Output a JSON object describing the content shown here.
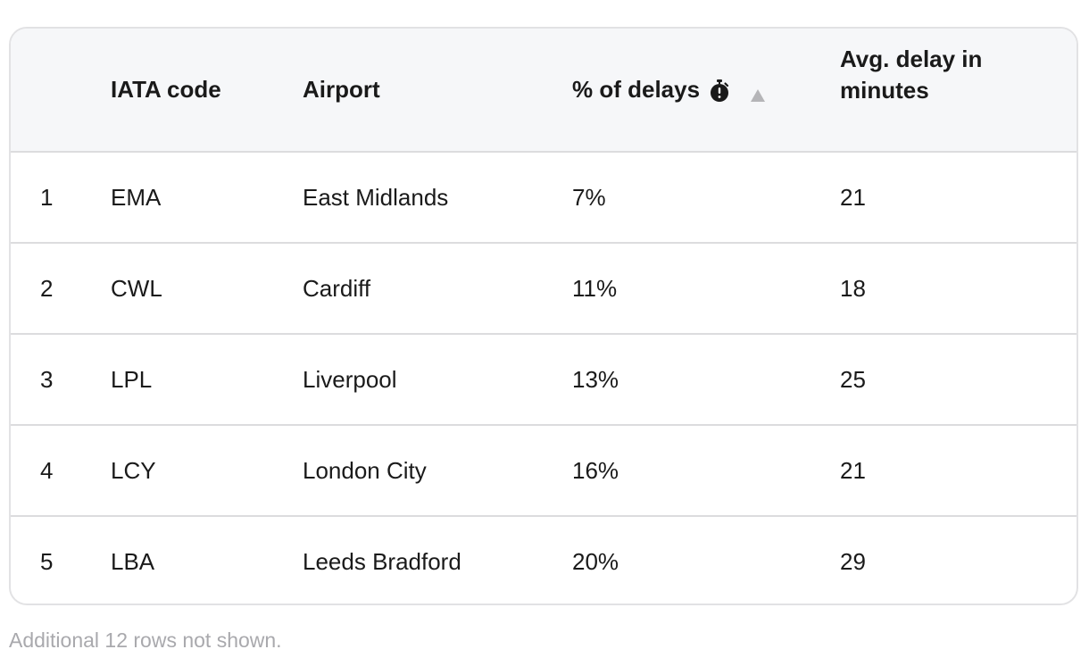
{
  "table": {
    "headers": {
      "index": "",
      "iata_code": "IATA code",
      "airport": "Airport",
      "pct_delays": "% of delays",
      "avg_delay": "Avg. delay in minutes"
    },
    "pct_header_icon": "stopwatch-icon",
    "sort_indicator": "sort-ascending-icon",
    "rows": [
      {
        "index": "1",
        "code": "EMA",
        "airport": "East Midlands",
        "pct": "7%",
        "avg": "21"
      },
      {
        "index": "2",
        "code": "CWL",
        "airport": "Cardiff",
        "pct": "11%",
        "avg": "18"
      },
      {
        "index": "3",
        "code": "LPL",
        "airport": "Liverpool",
        "pct": "13%",
        "avg": "25"
      },
      {
        "index": "4",
        "code": "LCY",
        "airport": "London City",
        "pct": "16%",
        "avg": "21"
      },
      {
        "index": "5",
        "code": "LBA",
        "airport": "Leeds Bradford",
        "pct": "20%",
        "avg": "29"
      }
    ]
  },
  "footnote": "Additional 12 rows not shown.",
  "colors": {
    "header_background": "#f6f7f9",
    "border": "#dcdcde",
    "text": "#1a1a1a",
    "muted_text": "#a9a9ad",
    "sort_icon": "#b5b5b8"
  }
}
